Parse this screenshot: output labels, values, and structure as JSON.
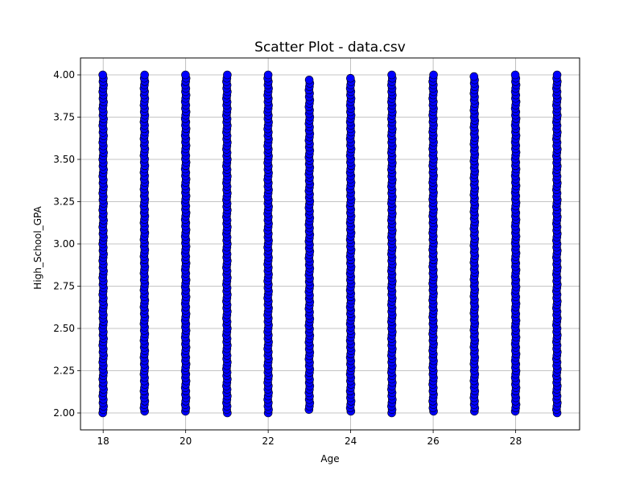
{
  "chart_data": {
    "type": "scatter",
    "title": "Scatter Plot - data.csv",
    "xlabel": "Age",
    "ylabel": "High_School_GPA",
    "xlim": [
      17.45,
      29.55
    ],
    "ylim": [
      1.9,
      4.1
    ],
    "x_ticks": [
      18,
      20,
      22,
      24,
      26,
      28
    ],
    "y_ticks": [
      "2.00",
      "2.25",
      "2.50",
      "2.75",
      "3.00",
      "3.25",
      "3.50",
      "3.75",
      "4.00"
    ],
    "grid": true,
    "legend": "none",
    "marker_color": "#0000ff",
    "marker_edge_color": "#000000",
    "columns": [
      {
        "x": 18,
        "ymin": 2.0,
        "ymax": 4.0
      },
      {
        "x": 19,
        "ymin": 2.01,
        "ymax": 4.0
      },
      {
        "x": 20,
        "ymin": 2.01,
        "ymax": 4.0
      },
      {
        "x": 21,
        "ymin": 2.0,
        "ymax": 4.0
      },
      {
        "x": 22,
        "ymin": 2.0,
        "ymax": 4.0
      },
      {
        "x": 23,
        "ymin": 2.02,
        "ymax": 3.97
      },
      {
        "x": 24,
        "ymin": 2.01,
        "ymax": 3.98
      },
      {
        "x": 25,
        "ymin": 2.0,
        "ymax": 4.0
      },
      {
        "x": 26,
        "ymin": 2.01,
        "ymax": 4.0
      },
      {
        "x": 27,
        "ymin": 2.01,
        "ymax": 3.99
      },
      {
        "x": 28,
        "ymin": 2.01,
        "ymax": 4.0
      },
      {
        "x": 29,
        "ymin": 2.0,
        "ymax": 4.0
      }
    ]
  }
}
